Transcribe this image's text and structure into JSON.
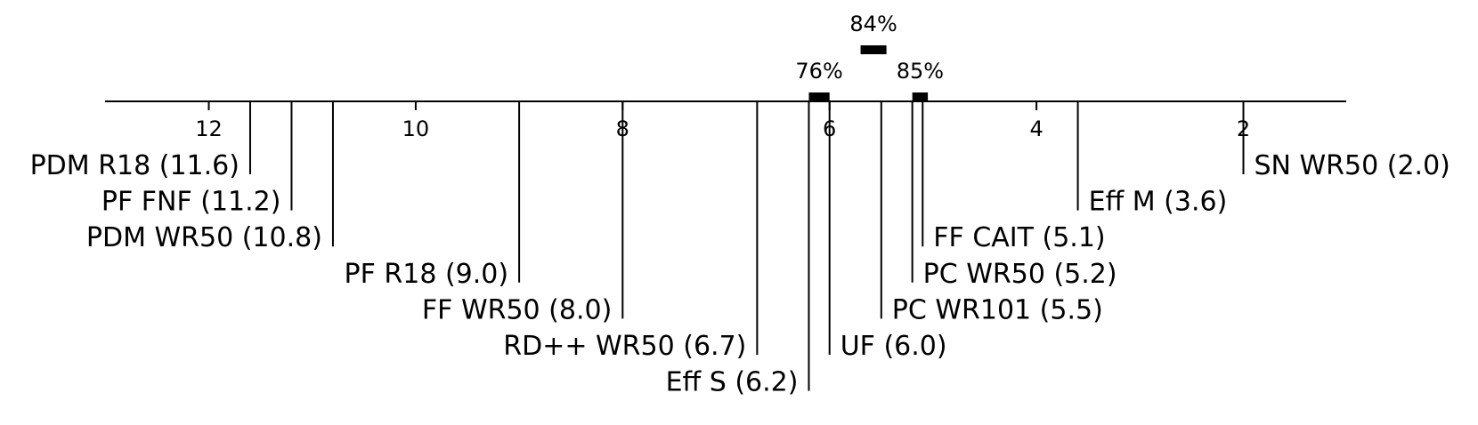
{
  "chart_data": {
    "type": "critical-difference-diagram",
    "axis": {
      "reversed": true,
      "ticks": [
        "12",
        "10",
        "8",
        "6",
        "4",
        "2"
      ]
    },
    "methods": [
      {
        "name": "PDM R18",
        "rank": 11.6,
        "label": "PDM R18 (11.6)",
        "side": "left"
      },
      {
        "name": "PF FNF",
        "rank": 11.2,
        "label": "PF FNF (11.2)",
        "side": "left"
      },
      {
        "name": "PDM WR50",
        "rank": 10.8,
        "label": "PDM WR50 (10.8)",
        "side": "left"
      },
      {
        "name": "PF R18",
        "rank": 9.0,
        "label": "PF R18 (9.0)",
        "side": "left"
      },
      {
        "name": "FF WR50",
        "rank": 8.0,
        "label": "FF WR50 (8.0)",
        "side": "left"
      },
      {
        "name": "RD++ WR50",
        "rank": 6.7,
        "label": "RD++ WR50 (6.7)",
        "side": "left"
      },
      {
        "name": "Eff S",
        "rank": 6.2,
        "label": "Eff S (6.2)",
        "side": "left"
      },
      {
        "name": "UF",
        "rank": 6.0,
        "label": "UF (6.0)",
        "side": "right"
      },
      {
        "name": "PC WR101",
        "rank": 5.5,
        "label": "PC WR101 (5.5)",
        "side": "right"
      },
      {
        "name": "PC WR50",
        "rank": 5.2,
        "label": "PC WR50 (5.2)",
        "side": "right"
      },
      {
        "name": "FF CAIT",
        "rank": 5.1,
        "label": "FF CAIT (5.1)",
        "side": "right"
      },
      {
        "name": "Eff M",
        "rank": 3.6,
        "label": "Eff M (3.6)",
        "side": "right"
      },
      {
        "name": "SN WR50",
        "rank": 2.0,
        "label": "SN WR50 (2.0)",
        "side": "right"
      }
    ],
    "groups": [
      {
        "label": "84%",
        "from": 5.7,
        "to": 5.45
      },
      {
        "label": "76%",
        "from": 6.2,
        "to": 6.0
      },
      {
        "label": "85%",
        "from": 5.2,
        "to": 5.05
      }
    ]
  }
}
